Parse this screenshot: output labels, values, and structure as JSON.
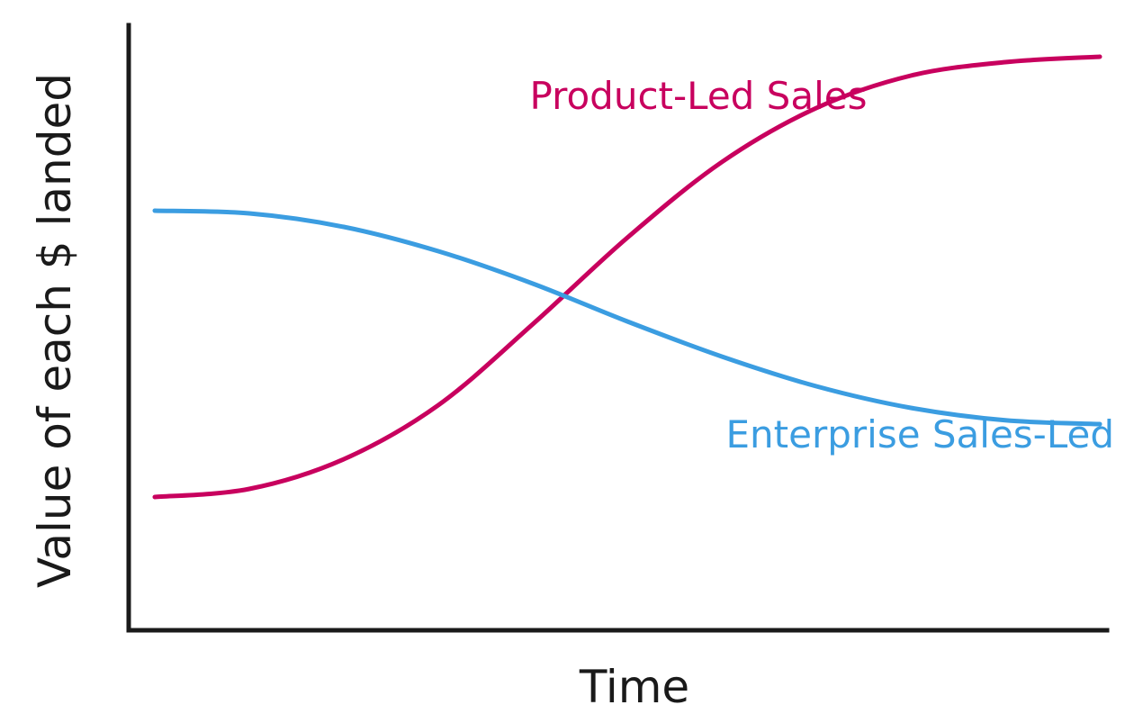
{
  "chart_data": {
    "type": "line",
    "title": "",
    "xlabel": "Time",
    "ylabel": "Value of each $ landed",
    "xlim": [
      0,
      10
    ],
    "ylim": [
      0,
      10
    ],
    "grid": false,
    "ticks_shown": false,
    "series": [
      {
        "name": "Product-Led Sales",
        "color": "#c8005e",
        "label_position": "top-center",
        "x": [
          0,
          1,
          2,
          3,
          4,
          5,
          6,
          7,
          8,
          9,
          10
        ],
        "y": [
          1.8,
          1.95,
          2.5,
          3.5,
          5.0,
          6.6,
          8.0,
          9.0,
          9.6,
          9.85,
          9.95
        ]
      },
      {
        "name": "Enterprise Sales-Led",
        "color": "#3b9de1",
        "label_position": "lower-right",
        "x": [
          0,
          1,
          2,
          3,
          4,
          5,
          6,
          7,
          8,
          9,
          10
        ],
        "y": [
          7.1,
          7.05,
          6.8,
          6.35,
          5.75,
          5.05,
          4.4,
          3.85,
          3.45,
          3.22,
          3.15
        ]
      }
    ]
  }
}
